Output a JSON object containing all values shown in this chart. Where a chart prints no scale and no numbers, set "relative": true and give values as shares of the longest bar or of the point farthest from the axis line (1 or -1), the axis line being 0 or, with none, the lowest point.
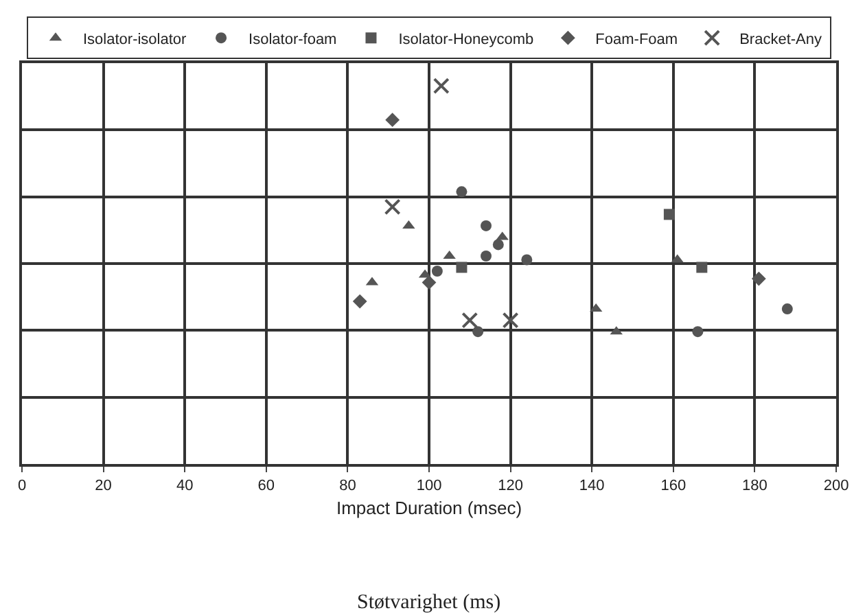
{
  "chart_data": {
    "type": "scatter",
    "relative": true,
    "xlabel": "Impact Duration (msec)",
    "xlim": [
      0,
      200
    ],
    "xticks": [
      0,
      20,
      40,
      60,
      80,
      100,
      120,
      140,
      160,
      180,
      200
    ],
    "grid": true,
    "legend": "top",
    "annotations": [
      "Støtvarighet (ms)"
    ],
    "series": [
      {
        "name": "Isolator-isolator",
        "color": "#555555",
        "marker": "triangle",
        "x": [
          95,
          86,
          99,
          105,
          118,
          141,
          146,
          161
        ],
        "values": [
          0.63,
          0.48,
          0.5,
          0.55,
          0.6,
          0.41,
          0.35,
          0.54
        ]
      },
      {
        "name": "Isolator-foam",
        "color": "#555555",
        "marker": "circle",
        "x": [
          108,
          114,
          114,
          117,
          124,
          102,
          112,
          166,
          188
        ],
        "values": [
          0.72,
          0.63,
          0.55,
          0.58,
          0.54,
          0.51,
          0.35,
          0.35,
          0.41
        ]
      },
      {
        "name": "Isolator-Honeycomb",
        "color": "#555555",
        "marker": "square",
        "x": [
          108,
          159,
          167
        ],
        "values": [
          0.52,
          0.66,
          0.52
        ]
      },
      {
        "name": "Foam-Foam",
        "color": "#555555",
        "marker": "diamond",
        "x": [
          91,
          83,
          100,
          181
        ],
        "values": [
          0.91,
          0.43,
          0.48,
          0.49
        ]
      },
      {
        "name": "Bracket-Any",
        "color": "#555555",
        "marker": "cross",
        "x": [
          103,
          91,
          110,
          120
        ],
        "values": [
          1.0,
          0.68,
          0.38,
          0.38
        ]
      }
    ]
  }
}
